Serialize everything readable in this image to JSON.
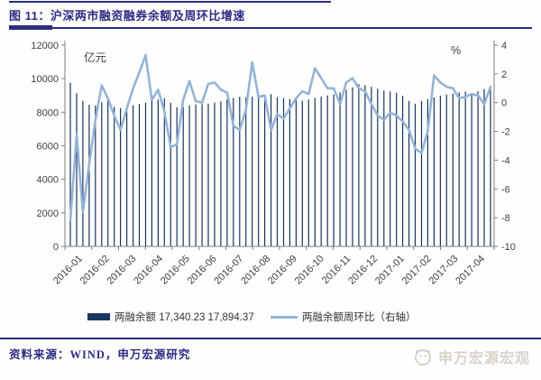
{
  "header": {
    "title": "图 11：沪深两市融资融券余额及周环比增速"
  },
  "legend": {
    "bar_label": "两融余额 17,340.23 17,894.37",
    "line_label": "两融余额周环比（右轴）"
  },
  "footer": {
    "source": "资料来源：WIND，申万宏源研究",
    "watermark": "申万宏源宏观"
  },
  "colors": {
    "bar": "#17375E",
    "line": "#95B3D7",
    "accent_navy": "#2c2c84",
    "axis": "#7f7f7f",
    "tick_text": "#404040",
    "watermark": "#d8d2c9"
  },
  "chart_data": {
    "type": "bar+line",
    "title": "沪深两市融资融券余额及周环比增速",
    "left_axis": {
      "label": "亿元",
      "min": 0,
      "max": 12000,
      "step": 2000,
      "ticks": [
        "0",
        "2000",
        "4000",
        "6000",
        "8000",
        "10000",
        "12000"
      ]
    },
    "right_axis": {
      "label": "%",
      "min": -10,
      "max": 4,
      "step": 2,
      "ticks": [
        "-10",
        "-8",
        "-6",
        "-4",
        "-2",
        "0",
        "2",
        "4"
      ]
    },
    "x_labels": [
      "2016-01",
      "2016-02",
      "2016-03",
      "2016-04",
      "2016-05",
      "2016-06",
      "2016-07",
      "2016-08",
      "2016-09",
      "2016-10",
      "2016-11",
      "2016-12",
      "2017-01",
      "2017-02",
      "2017-03",
      "2017-04"
    ],
    "grid": false,
    "legend_position": "bottom",
    "series": [
      {
        "name": "两融余额 17,340.23 17,894.37",
        "type": "bar",
        "axis": "left",
        "unit": "亿元",
        "values": [
          9755,
          9130,
          8680,
          8450,
          8400,
          8600,
          8770,
          8320,
          8250,
          8350,
          8420,
          8500,
          8560,
          8700,
          8760,
          8830,
          8560,
          8300,
          8320,
          8400,
          8460,
          8480,
          8520,
          8580,
          8640,
          8790,
          8850,
          8920,
          8870,
          8920,
          8980,
          9050,
          9080,
          8900,
          8840,
          8780,
          8740,
          8690,
          8760,
          8850,
          8940,
          9000,
          9050,
          9180,
          9330,
          9480,
          9670,
          9620,
          9520,
          9400,
          9300,
          9240,
          9160,
          8980,
          8680,
          8510,
          8670,
          8790,
          8880,
          8980,
          9060,
          9120,
          9180,
          9230,
          9140,
          9250,
          9380,
          9420
        ]
      },
      {
        "name": "两融余额周环比（右轴）",
        "type": "line",
        "axis": "right",
        "unit": "%",
        "values": [
          -8.2,
          -2.2,
          -7.6,
          -4.3,
          -1.2,
          1.2,
          0.3,
          -0.9,
          -1.9,
          -0.4,
          1.0,
          2.1,
          3.3,
          0.2,
          0.9,
          -0.6,
          -3.1,
          -2.9,
          0.2,
          1.5,
          0.1,
          0.0,
          1.3,
          1.4,
          0.9,
          0.7,
          -1.6,
          -1.9,
          -0.5,
          2.8,
          0.4,
          0.5,
          -1.9,
          -0.8,
          -1.1,
          -0.4,
          0.3,
          0.8,
          0.6,
          2.4,
          1.7,
          1.0,
          1.0,
          -0.1,
          1.4,
          1.7,
          1.0,
          0.8,
          -0.1,
          -0.9,
          -1.2,
          -0.7,
          -0.9,
          -1.3,
          -1.9,
          -3.2,
          -3.5,
          -2.0,
          1.9,
          1.4,
          1.1,
          1.0,
          0.3,
          0.4,
          0.6,
          0.5,
          -0.1,
          1.1
        ]
      }
    ]
  }
}
